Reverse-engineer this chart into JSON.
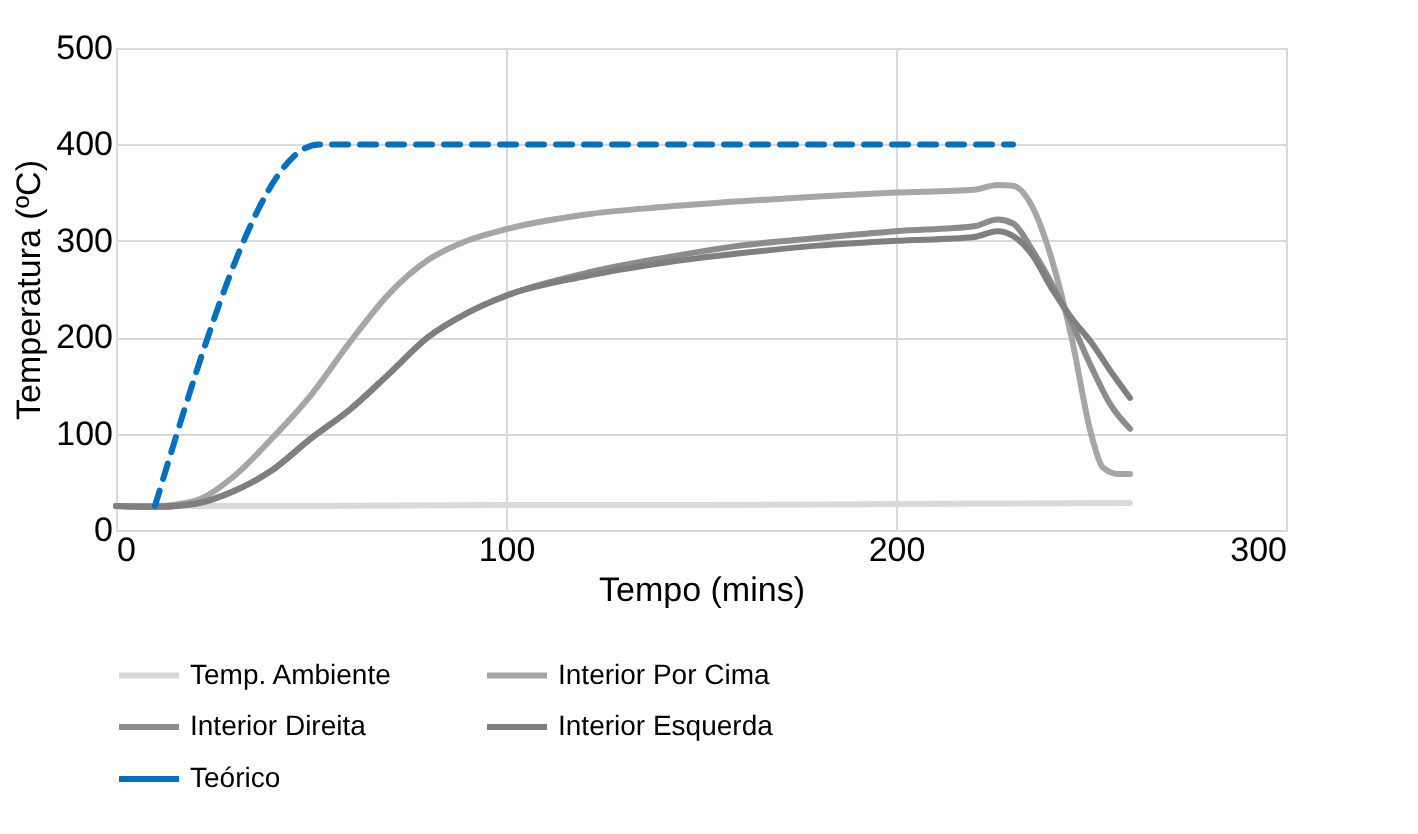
{
  "chart_data": {
    "type": "line",
    "xlabel": "Tempo (mins)",
    "ylabel": "Temperatura (ºC)",
    "xlim": [
      0,
      300
    ],
    "xticks": [
      0,
      100,
      200,
      300
    ],
    "ylim": [
      0,
      500
    ],
    "yticks": [
      0,
      100,
      200,
      300,
      400,
      500
    ],
    "grid": true,
    "legend": "bottom",
    "marker": "none",
    "series": [
      {
        "name": "Temp. Ambiente",
        "color": "#d9d9d9",
        "line_style": "solid",
        "x": [
          0,
          50,
          100,
          150,
          200,
          260
        ],
        "values": [
          25,
          25,
          26,
          26,
          27,
          28
        ]
      },
      {
        "name": "Interior Por Cima",
        "color": "#a6a6a6",
        "line_style": "solid",
        "x": [
          0,
          10,
          20,
          30,
          40,
          50,
          60,
          70,
          80,
          90,
          100,
          120,
          140,
          160,
          180,
          200,
          220,
          226,
          230,
          235,
          240,
          245,
          250,
          253,
          257,
          260
        ],
        "values": [
          25,
          25,
          30,
          55,
          95,
          140,
          195,
          245,
          280,
          300,
          312,
          327,
          335,
          341,
          346,
          350,
          353,
          358,
          357,
          335,
          280,
          200,
          100,
          65,
          58,
          58
        ]
      },
      {
        "name": "Interior Direita",
        "color": "#8c8c8c",
        "line_style": "solid",
        "x": [
          0,
          10,
          20,
          30,
          40,
          50,
          60,
          70,
          80,
          90,
          100,
          120,
          140,
          160,
          180,
          200,
          220,
          226,
          230,
          235,
          240,
          245,
          250,
          255,
          260
        ],
        "values": [
          25,
          24,
          27,
          40,
          62,
          95,
          125,
          162,
          200,
          225,
          243,
          266,
          282,
          295,
          303,
          310,
          315,
          322,
          318,
          290,
          255,
          215,
          170,
          130,
          105
        ]
      },
      {
        "name": "Interior Esquerda",
        "color": "#7f7f7f",
        "line_style": "solid",
        "x": [
          0,
          10,
          20,
          30,
          40,
          50,
          60,
          70,
          80,
          90,
          100,
          120,
          140,
          160,
          180,
          200,
          220,
          226,
          230,
          235,
          240,
          245,
          250,
          255,
          260
        ],
        "values": [
          25,
          24,
          27,
          40,
          62,
          95,
          125,
          162,
          200,
          225,
          243,
          263,
          277,
          287,
          295,
          300,
          304,
          310,
          305,
          285,
          250,
          220,
          195,
          165,
          137
        ]
      },
      {
        "name": "Teórico",
        "color": "#0070c0",
        "line_style": "dashed",
        "x": [
          10,
          52,
          230
        ],
        "values": [
          25,
          400,
          400
        ]
      }
    ]
  }
}
